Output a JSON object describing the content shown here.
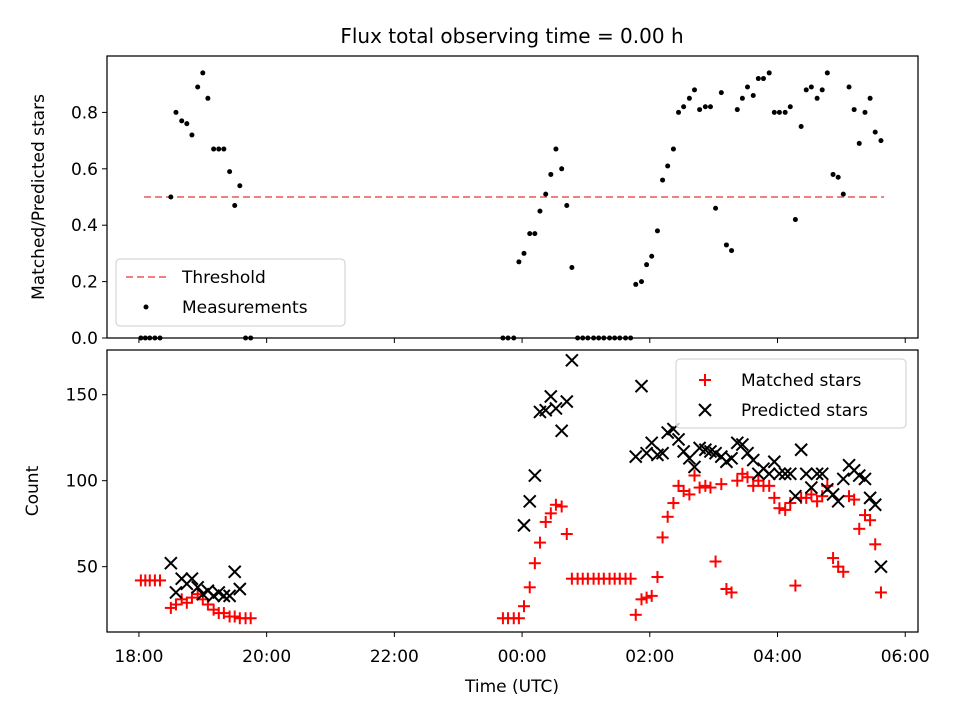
{
  "figure": {
    "title": "Flux total observing time = 0.00 h",
    "xlabel": "Time (UTC)",
    "x_ticks": [
      "18:00",
      "20:00",
      "22:00",
      "00:00",
      "02:00",
      "04:00",
      "06:00"
    ]
  },
  "colors": {
    "threshold": "#f08080",
    "measurements": "#000000",
    "matched": "#ff0000",
    "predicted": "#000000"
  },
  "chart_data": [
    {
      "type": "scatter",
      "xlabel": "Time (UTC)",
      "ylabel": "Matched/Predicted stars",
      "xlim": [
        -0.5,
        12.2
      ],
      "ylim": [
        0,
        1.0
      ],
      "yticks": [
        "0.0",
        "0.2",
        "0.4",
        "0.6",
        "0.8"
      ],
      "ytick_values": [
        0.0,
        0.2,
        0.4,
        0.6,
        0.8
      ],
      "legend_position": "lower-left",
      "threshold": {
        "name": "Threshold",
        "x": [
          0.08,
          11.67
        ],
        "y": 0.5
      },
      "series": [
        {
          "name": "Measurements",
          "points": [
            [
              0.03,
              0
            ],
            [
              0.1,
              0
            ],
            [
              0.17,
              0
            ],
            [
              0.25,
              0
            ],
            [
              0.33,
              0
            ],
            [
              0.5,
              0.5
            ],
            [
              0.58,
              0.8
            ],
            [
              0.67,
              0.77
            ],
            [
              0.75,
              0.76
            ],
            [
              0.83,
              0.72
            ],
            [
              0.92,
              0.89
            ],
            [
              1.0,
              0.94
            ],
            [
              1.08,
              0.85
            ],
            [
              1.17,
              0.67
            ],
            [
              1.25,
              0.67
            ],
            [
              1.33,
              0.67
            ],
            [
              1.42,
              0.59
            ],
            [
              1.5,
              0.47
            ],
            [
              1.58,
              0.54
            ],
            [
              1.67,
              0
            ],
            [
              1.75,
              0
            ],
            [
              5.7,
              0
            ],
            [
              5.78,
              0
            ],
            [
              5.87,
              0
            ],
            [
              5.95,
              0.27
            ],
            [
              6.03,
              0.3
            ],
            [
              6.12,
              0.37
            ],
            [
              6.2,
              0.37
            ],
            [
              6.28,
              0.45
            ],
            [
              6.37,
              0.51
            ],
            [
              6.45,
              0.58
            ],
            [
              6.53,
              0.67
            ],
            [
              6.62,
              0.6
            ],
            [
              6.7,
              0.47
            ],
            [
              6.78,
              0.25
            ],
            [
              6.87,
              0
            ],
            [
              6.95,
              0
            ],
            [
              7.03,
              0
            ],
            [
              7.12,
              0
            ],
            [
              7.2,
              0
            ],
            [
              7.28,
              0
            ],
            [
              7.37,
              0
            ],
            [
              7.45,
              0
            ],
            [
              7.53,
              0
            ],
            [
              7.62,
              0
            ],
            [
              7.7,
              0
            ],
            [
              7.78,
              0.19
            ],
            [
              7.87,
              0.2
            ],
            [
              7.95,
              0.26
            ],
            [
              8.03,
              0.29
            ],
            [
              8.12,
              0.38
            ],
            [
              8.2,
              0.56
            ],
            [
              8.28,
              0.61
            ],
            [
              8.37,
              0.67
            ],
            [
              8.45,
              0.8
            ],
            [
              8.53,
              0.82
            ],
            [
              8.62,
              0.85
            ],
            [
              8.7,
              0.88
            ],
            [
              8.78,
              0.81
            ],
            [
              8.87,
              0.82
            ],
            [
              8.95,
              0.82
            ],
            [
              9.03,
              0.46
            ],
            [
              9.12,
              0.87
            ],
            [
              9.2,
              0.33
            ],
            [
              9.28,
              0.31
            ],
            [
              9.37,
              0.81
            ],
            [
              9.45,
              0.85
            ],
            [
              9.53,
              0.89
            ],
            [
              9.62,
              0.86
            ],
            [
              9.7,
              0.92
            ],
            [
              9.78,
              0.92
            ],
            [
              9.87,
              0.94
            ],
            [
              9.95,
              0.8
            ],
            [
              10.03,
              0.8
            ],
            [
              10.12,
              0.8
            ],
            [
              10.2,
              0.82
            ],
            [
              10.28,
              0.42
            ],
            [
              10.37,
              0.75
            ],
            [
              10.45,
              0.88
            ],
            [
              10.53,
              0.89
            ],
            [
              10.62,
              0.85
            ],
            [
              10.7,
              0.88
            ],
            [
              10.78,
              0.94
            ],
            [
              10.87,
              0.58
            ],
            [
              10.95,
              0.57
            ],
            [
              11.03,
              0.51
            ],
            [
              11.12,
              0.89
            ],
            [
              11.2,
              0.81
            ],
            [
              11.28,
              0.69
            ],
            [
              11.37,
              0.8
            ],
            [
              11.45,
              0.85
            ],
            [
              11.53,
              0.73
            ],
            [
              11.62,
              0.7
            ]
          ]
        }
      ]
    },
    {
      "type": "scatter",
      "xlabel": "Time (UTC)",
      "ylabel": "Count",
      "xlim": [
        -0.5,
        12.2
      ],
      "ylim": [
        12,
        176
      ],
      "yticks": [
        "50",
        "100",
        "150"
      ],
      "ytick_values": [
        50,
        100,
        150
      ],
      "legend_position": "upper-right",
      "series": [
        {
          "name": "Matched stars",
          "marker": "plus",
          "points": [
            [
              0.03,
              42
            ],
            [
              0.1,
              42
            ],
            [
              0.17,
              42
            ],
            [
              0.25,
              42
            ],
            [
              0.33,
              42
            ],
            [
              0.5,
              26
            ],
            [
              0.58,
              28
            ],
            [
              0.67,
              31
            ],
            [
              0.75,
              29
            ],
            [
              0.83,
              32
            ],
            [
              0.92,
              34
            ],
            [
              1.0,
              31
            ],
            [
              1.08,
              28
            ],
            [
              1.17,
              25
            ],
            [
              1.25,
              23
            ],
            [
              1.33,
              23
            ],
            [
              1.42,
              21
            ],
            [
              1.5,
              21
            ],
            [
              1.58,
              20
            ],
            [
              1.67,
              20
            ],
            [
              1.75,
              20
            ],
            [
              5.7,
              20
            ],
            [
              5.78,
              20
            ],
            [
              5.87,
              20
            ],
            [
              5.95,
              20
            ],
            [
              6.03,
              27
            ],
            [
              6.12,
              38
            ],
            [
              6.2,
              52
            ],
            [
              6.28,
              64
            ],
            [
              6.37,
              76
            ],
            [
              6.45,
              81
            ],
            [
              6.53,
              86
            ],
            [
              6.62,
              85
            ],
            [
              6.7,
              69
            ],
            [
              6.78,
              43
            ],
            [
              6.87,
              43
            ],
            [
              6.95,
              43
            ],
            [
              7.03,
              43
            ],
            [
              7.12,
              43
            ],
            [
              7.2,
              43
            ],
            [
              7.28,
              43
            ],
            [
              7.37,
              43
            ],
            [
              7.45,
              43
            ],
            [
              7.53,
              43
            ],
            [
              7.62,
              43
            ],
            [
              7.7,
              43
            ],
            [
              7.78,
              22
            ],
            [
              7.87,
              31
            ],
            [
              7.95,
              32
            ],
            [
              8.03,
              33
            ],
            [
              8.12,
              44
            ],
            [
              8.2,
              67
            ],
            [
              8.28,
              79
            ],
            [
              8.37,
              87
            ],
            [
              8.45,
              97
            ],
            [
              8.53,
              94
            ],
            [
              8.62,
              92
            ],
            [
              8.7,
              103
            ],
            [
              8.78,
              96
            ],
            [
              8.87,
              97
            ],
            [
              8.95,
              96
            ],
            [
              9.03,
              53
            ],
            [
              9.12,
              98
            ],
            [
              9.2,
              37
            ],
            [
              9.28,
              35
            ],
            [
              9.37,
              100
            ],
            [
              9.45,
              104
            ],
            [
              9.53,
              102
            ],
            [
              9.62,
              97
            ],
            [
              9.7,
              100
            ],
            [
              9.78,
              97
            ],
            [
              9.87,
              97
            ],
            [
              9.95,
              90
            ],
            [
              10.03,
              84
            ],
            [
              10.12,
              83
            ],
            [
              10.2,
              87
            ],
            [
              10.28,
              39
            ],
            [
              10.37,
              90
            ],
            [
              10.45,
              90
            ],
            [
              10.53,
              92
            ],
            [
              10.62,
              88
            ],
            [
              10.7,
              91
            ],
            [
              10.78,
              97
            ],
            [
              10.87,
              55
            ],
            [
              10.95,
              50
            ],
            [
              11.03,
              47
            ],
            [
              11.12,
              91
            ],
            [
              11.2,
              89
            ],
            [
              11.28,
              72
            ],
            [
              11.37,
              80
            ],
            [
              11.45,
              77
            ],
            [
              11.53,
              63
            ],
            [
              11.62,
              35
            ]
          ]
        },
        {
          "name": "Predicted stars",
          "marker": "x",
          "points": [
            [
              0.5,
              52
            ],
            [
              0.58,
              35
            ],
            [
              0.67,
              43
            ],
            [
              0.75,
              40
            ],
            [
              0.83,
              43
            ],
            [
              0.92,
              38
            ],
            [
              1.0,
              34
            ],
            [
              1.08,
              36
            ],
            [
              1.17,
              33
            ],
            [
              1.25,
              35
            ],
            [
              1.33,
              33
            ],
            [
              1.42,
              33
            ],
            [
              1.5,
              47
            ],
            [
              1.58,
              37
            ],
            [
              6.03,
              74
            ],
            [
              6.12,
              88
            ],
            [
              6.2,
              103
            ],
            [
              6.28,
              140
            ],
            [
              6.37,
              141
            ],
            [
              6.45,
              149
            ],
            [
              6.53,
              142
            ],
            [
              6.62,
              129
            ],
            [
              6.7,
              146
            ],
            [
              6.78,
              170
            ],
            [
              7.78,
              114
            ],
            [
              7.87,
              155
            ],
            [
              7.95,
              116
            ],
            [
              8.03,
              122
            ],
            [
              8.12,
              115
            ],
            [
              8.2,
              116
            ],
            [
              8.28,
              128
            ],
            [
              8.37,
              130
            ],
            [
              8.45,
              124
            ],
            [
              8.53,
              117
            ],
            [
              8.62,
              113
            ],
            [
              8.7,
              108
            ],
            [
              8.78,
              119
            ],
            [
              8.87,
              118
            ],
            [
              8.95,
              117
            ],
            [
              9.03,
              116
            ],
            [
              9.12,
              114
            ],
            [
              9.2,
              111
            ],
            [
              9.28,
              113
            ],
            [
              9.37,
              122
            ],
            [
              9.45,
              121
            ],
            [
              9.53,
              116
            ],
            [
              9.62,
              112
            ],
            [
              9.7,
              104
            ],
            [
              9.78,
              107
            ],
            [
              9.87,
              104
            ],
            [
              9.95,
              111
            ],
            [
              10.03,
              104
            ],
            [
              10.12,
              104
            ],
            [
              10.2,
              104
            ],
            [
              10.28,
              91
            ],
            [
              10.37,
              118
            ],
            [
              10.45,
              104
            ],
            [
              10.53,
              96
            ],
            [
              10.62,
              104
            ],
            [
              10.7,
              104
            ],
            [
              10.78,
              95
            ],
            [
              10.87,
              92
            ],
            [
              10.95,
              88
            ],
            [
              11.03,
              101
            ],
            [
              11.12,
              109
            ],
            [
              11.2,
              106
            ],
            [
              11.28,
              103
            ],
            [
              11.37,
              101
            ],
            [
              11.45,
              90
            ],
            [
              11.53,
              86
            ],
            [
              11.62,
              50
            ]
          ]
        }
      ]
    }
  ]
}
